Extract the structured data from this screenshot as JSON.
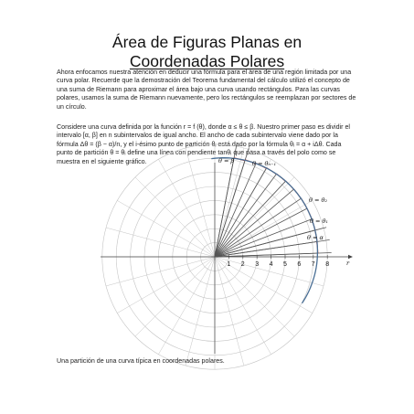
{
  "page": {
    "title_line1": "Área de Figuras Planas en",
    "title_line2": "Coordenadas Polares",
    "paragraph1": "Ahora enfocamos nuestra atención en deducir una fórmula para el área de una región limitada por una curva polar. Recuerde que la demostración del Teorema fundamental del cálculo utilizó el concepto de una suma de Riemann para aproximar el área bajo una curva usando rectángulos. Para las curvas polares, usamos la suma de Riemann nuevamente, pero los rectángulos se reemplazan por sectores de un círculo.",
    "paragraph2": "Considere una curva definida por la función r = f (θ), donde α ≤ θ ≤ β. Nuestro primer paso es dividir el intervalo [α, β] en n subintervalos de igual ancho. El ancho de cada subintervalo viene dado por la fórmula Δθ = (β − α)/n, y el i-ésimo punto de partición θᵢ está dado por la fórmula θᵢ = α + iΔθ. Cada punto de partición θ = θᵢ define una línea con pendiente tanθᵢ que pasa a través del polo como se muestra en el siguiente gráfico.",
    "caption": "Una partición de una curva típica en coordenadas polares."
  },
  "figure": {
    "ray_labels": [
      "θ = β",
      "θ = θₙ₋₁",
      "θ = θ₂",
      "θ = θ₁",
      "θ = α"
    ],
    "axis_label": "r",
    "ticks": [
      "1",
      "2",
      "3",
      "4",
      "5",
      "6",
      "7",
      "8"
    ],
    "colors": {
      "curve": "#4a6f95",
      "partition": "#c0392b",
      "grid": "#c4c4c4",
      "rays": "#555555"
    }
  }
}
